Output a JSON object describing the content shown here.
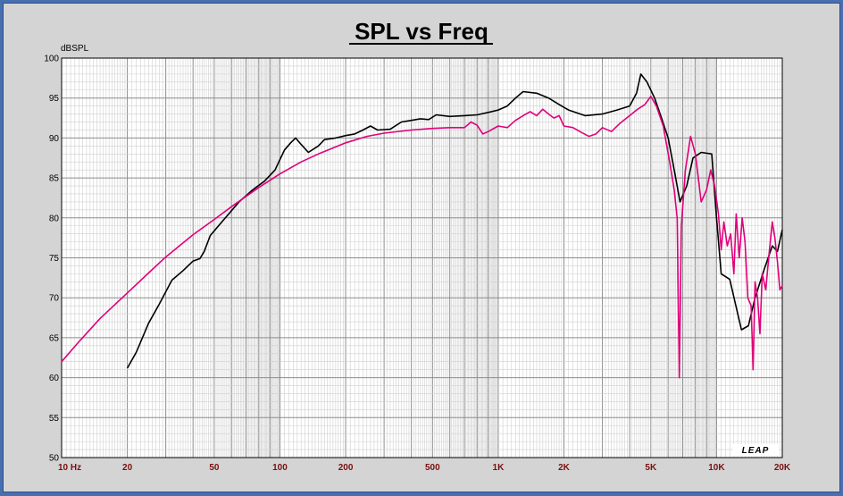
{
  "chart_data": {
    "type": "line",
    "title": "SPL vs Freq",
    "ylabel": "dBSPL",
    "xlabel": "",
    "x_scale": "log",
    "xlim": [
      10,
      20000
    ],
    "ylim": [
      50,
      100
    ],
    "grid": true,
    "logo": "LEAP",
    "y_ticks": [
      "100",
      "95",
      "90",
      "85",
      "80",
      "75",
      "70",
      "65",
      "60",
      "55",
      "50"
    ],
    "y_tick_values": [
      100,
      95,
      90,
      85,
      80,
      75,
      70,
      65,
      60,
      55,
      50
    ],
    "x_ticks": [
      "10 Hz",
      "20",
      "50",
      "100",
      "200",
      "500",
      "1K",
      "2K",
      "5K",
      "10K",
      "20K"
    ],
    "x_tick_values": [
      10,
      20,
      50,
      100,
      200,
      500,
      1000,
      2000,
      5000,
      10000,
      20000
    ],
    "series": [
      {
        "color": "#000000",
        "points": [
          [
            20,
            61.2
          ],
          [
            22,
            63.2
          ],
          [
            25,
            66.8
          ],
          [
            28,
            69.2
          ],
          [
            32,
            72.2
          ],
          [
            36,
            73.4
          ],
          [
            40,
            74.6
          ],
          [
            43,
            74.9
          ],
          [
            45,
            75.8
          ],
          [
            48,
            77.8
          ],
          [
            55,
            79.7
          ],
          [
            65,
            82.0
          ],
          [
            75,
            83.5
          ],
          [
            85,
            84.6
          ],
          [
            95,
            86.0
          ],
          [
            105,
            88.5
          ],
          [
            112,
            89.4
          ],
          [
            118,
            90.0
          ],
          [
            125,
            89.2
          ],
          [
            135,
            88.2
          ],
          [
            150,
            89.0
          ],
          [
            160,
            89.8
          ],
          [
            180,
            90.0
          ],
          [
            200,
            90.3
          ],
          [
            220,
            90.5
          ],
          [
            240,
            91.0
          ],
          [
            260,
            91.5
          ],
          [
            280,
            91.0
          ],
          [
            320,
            91.1
          ],
          [
            360,
            92.0
          ],
          [
            400,
            92.2
          ],
          [
            440,
            92.4
          ],
          [
            480,
            92.3
          ],
          [
            520,
            92.9
          ],
          [
            600,
            92.7
          ],
          [
            700,
            92.8
          ],
          [
            800,
            92.9
          ],
          [
            900,
            93.2
          ],
          [
            1000,
            93.5
          ],
          [
            1100,
            94.0
          ],
          [
            1200,
            95.0
          ],
          [
            1300,
            95.8
          ],
          [
            1500,
            95.6
          ],
          [
            1700,
            95.0
          ],
          [
            1900,
            94.2
          ],
          [
            2100,
            93.5
          ],
          [
            2500,
            92.8
          ],
          [
            3000,
            93.0
          ],
          [
            3500,
            93.5
          ],
          [
            4000,
            94.0
          ],
          [
            4300,
            95.6
          ],
          [
            4500,
            98.0
          ],
          [
            4800,
            97.0
          ],
          [
            5200,
            95.0
          ],
          [
            5600,
            92.5
          ],
          [
            6000,
            90.0
          ],
          [
            6400,
            86.0
          ],
          [
            6800,
            82.0
          ],
          [
            7300,
            84.0
          ],
          [
            7800,
            87.5
          ],
          [
            8500,
            88.2
          ],
          [
            9500,
            88.0
          ],
          [
            10000,
            80.0
          ],
          [
            10500,
            73.0
          ],
          [
            11500,
            72.3
          ],
          [
            12500,
            68.0
          ],
          [
            13000,
            66.0
          ],
          [
            14000,
            66.5
          ],
          [
            15000,
            70.0
          ],
          [
            16500,
            73.5
          ],
          [
            18000,
            76.5
          ],
          [
            19000,
            75.8
          ],
          [
            20000,
            78.5
          ]
        ]
      },
      {
        "color": "#e0007a",
        "points": [
          [
            10,
            62.0
          ],
          [
            12,
            64.5
          ],
          [
            15,
            67.4
          ],
          [
            20,
            70.6
          ],
          [
            25,
            73.1
          ],
          [
            30,
            75.1
          ],
          [
            40,
            77.9
          ],
          [
            50,
            79.8
          ],
          [
            60,
            81.4
          ],
          [
            70,
            82.7
          ],
          [
            80,
            83.8
          ],
          [
            100,
            85.5
          ],
          [
            125,
            87.0
          ],
          [
            150,
            88.0
          ],
          [
            200,
            89.4
          ],
          [
            250,
            90.2
          ],
          [
            300,
            90.6
          ],
          [
            400,
            91.0
          ],
          [
            500,
            91.2
          ],
          [
            600,
            91.3
          ],
          [
            700,
            91.3
          ],
          [
            750,
            92.0
          ],
          [
            800,
            91.6
          ],
          [
            850,
            90.5
          ],
          [
            900,
            90.8
          ],
          [
            1000,
            91.5
          ],
          [
            1100,
            91.3
          ],
          [
            1200,
            92.2
          ],
          [
            1300,
            92.8
          ],
          [
            1400,
            93.3
          ],
          [
            1500,
            92.8
          ],
          [
            1600,
            93.6
          ],
          [
            1700,
            93.0
          ],
          [
            1800,
            92.5
          ],
          [
            1900,
            92.8
          ],
          [
            2000,
            91.5
          ],
          [
            2200,
            91.3
          ],
          [
            2400,
            90.7
          ],
          [
            2600,
            90.2
          ],
          [
            2800,
            90.5
          ],
          [
            3000,
            91.3
          ],
          [
            3300,
            90.8
          ],
          [
            3600,
            91.8
          ],
          [
            4000,
            92.8
          ],
          [
            4300,
            93.5
          ],
          [
            4700,
            94.2
          ],
          [
            5000,
            95.2
          ],
          [
            5300,
            94.0
          ],
          [
            5700,
            91.5
          ],
          [
            6100,
            87.0
          ],
          [
            6400,
            83.5
          ],
          [
            6600,
            80.0
          ],
          [
            6750,
            60.0
          ],
          [
            6900,
            79.0
          ],
          [
            7200,
            86.0
          ],
          [
            7600,
            90.2
          ],
          [
            8000,
            88.0
          ],
          [
            8500,
            82.0
          ],
          [
            9000,
            83.5
          ],
          [
            9400,
            86.0
          ],
          [
            9800,
            84.0
          ],
          [
            10200,
            80.5
          ],
          [
            10500,
            76.0
          ],
          [
            10800,
            79.5
          ],
          [
            11200,
            76.5
          ],
          [
            11600,
            78.0
          ],
          [
            12000,
            73.0
          ],
          [
            12300,
            80.5
          ],
          [
            12700,
            75.0
          ],
          [
            13100,
            80.0
          ],
          [
            13500,
            77.0
          ],
          [
            13900,
            70.0
          ],
          [
            14400,
            69.0
          ],
          [
            14700,
            61.0
          ],
          [
            15000,
            72.0
          ],
          [
            15400,
            70.0
          ],
          [
            15800,
            65.5
          ],
          [
            16200,
            73.0
          ],
          [
            16800,
            71.0
          ],
          [
            17400,
            75.5
          ],
          [
            18000,
            79.5
          ],
          [
            18500,
            77.5
          ],
          [
            19000,
            74.5
          ],
          [
            19500,
            71.0
          ],
          [
            20000,
            71.5
          ]
        ]
      }
    ]
  }
}
